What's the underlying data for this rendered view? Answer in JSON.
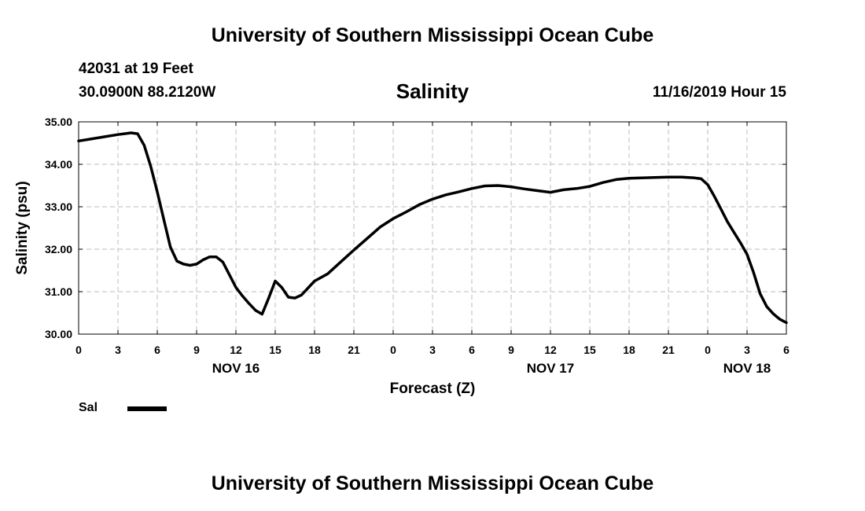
{
  "header": {
    "title": "University of Southern Mississippi Ocean Cube",
    "station": "42031 at 19 Feet",
    "coords": "30.0900N 88.2120W",
    "timestamp": "11/16/2019 Hour 15"
  },
  "footer": {
    "title": "University of Southern Mississippi Ocean Cube"
  },
  "legend": {
    "label": "Sal"
  },
  "colors": {
    "line": "#000000",
    "grid": "#bdbdbd",
    "background": "#ffffff"
  },
  "chart_data": {
    "type": "line",
    "title": "Salinity",
    "xlabel": "Forecast (Z)",
    "ylabel": "Salinity (psu)",
    "xlim": [
      0,
      54
    ],
    "ylim": [
      30,
      35
    ],
    "grid": true,
    "yticks": [
      {
        "value": 30,
        "label": "30.00"
      },
      {
        "value": 31,
        "label": "31.00"
      },
      {
        "value": 32,
        "label": "32.00"
      },
      {
        "value": 33,
        "label": "33.00"
      },
      {
        "value": 34,
        "label": "34.00"
      },
      {
        "value": 35,
        "label": "35.00"
      }
    ],
    "xticks": [
      {
        "value": 0,
        "label": "0"
      },
      {
        "value": 3,
        "label": "3"
      },
      {
        "value": 6,
        "label": "6"
      },
      {
        "value": 9,
        "label": "9"
      },
      {
        "value": 12,
        "label": "12"
      },
      {
        "value": 15,
        "label": "15"
      },
      {
        "value": 18,
        "label": "18"
      },
      {
        "value": 21,
        "label": "21"
      },
      {
        "value": 24,
        "label": "0"
      },
      {
        "value": 27,
        "label": "3"
      },
      {
        "value": 30,
        "label": "6"
      },
      {
        "value": 33,
        "label": "9"
      },
      {
        "value": 36,
        "label": "12"
      },
      {
        "value": 39,
        "label": "15"
      },
      {
        "value": 42,
        "label": "18"
      },
      {
        "value": 45,
        "label": "21"
      },
      {
        "value": 48,
        "label": "0"
      },
      {
        "value": 51,
        "label": "3"
      },
      {
        "value": 54,
        "label": "6"
      }
    ],
    "day_labels": [
      {
        "value": 12,
        "label": "NOV 16"
      },
      {
        "value": 36,
        "label": "NOV 17"
      },
      {
        "value": 51,
        "label": "NOV 18"
      }
    ],
    "series": [
      {
        "name": "Sal",
        "x": [
          0,
          1,
          2,
          3,
          4,
          4.5,
          5,
          5.5,
          6,
          6.5,
          7,
          7.5,
          8,
          8.5,
          9,
          9.5,
          10,
          10.5,
          11,
          11.5,
          12,
          12.5,
          13,
          13.5,
          14,
          14.5,
          15,
          15.5,
          16,
          16.5,
          17,
          18,
          19,
          20,
          21,
          22,
          23,
          24,
          25,
          26,
          27,
          28,
          29,
          30,
          31,
          32,
          33,
          34,
          35,
          36,
          37,
          38,
          39,
          40,
          41,
          42,
          43,
          44,
          45,
          46,
          47,
          47.5,
          48,
          48.5,
          49,
          49.5,
          50,
          50.5,
          51,
          51.5,
          52,
          52.5,
          53,
          53.5,
          54
        ],
        "values": [
          34.55,
          34.6,
          34.65,
          34.7,
          34.74,
          34.72,
          34.45,
          33.95,
          33.35,
          32.7,
          32.05,
          31.72,
          31.65,
          31.62,
          31.65,
          31.75,
          31.82,
          31.82,
          31.7,
          31.4,
          31.1,
          30.9,
          30.72,
          30.56,
          30.47,
          30.85,
          31.25,
          31.1,
          30.87,
          30.85,
          30.92,
          31.25,
          31.42,
          31.7,
          31.98,
          32.25,
          32.52,
          32.72,
          32.88,
          33.05,
          33.18,
          33.28,
          33.35,
          33.43,
          33.49,
          33.5,
          33.47,
          33.42,
          33.38,
          33.34,
          33.4,
          33.43,
          33.48,
          33.57,
          33.64,
          33.67,
          33.68,
          33.69,
          33.7,
          33.7,
          33.68,
          33.66,
          33.52,
          33.25,
          32.95,
          32.65,
          32.4,
          32.15,
          31.88,
          31.45,
          30.95,
          30.65,
          30.48,
          30.35,
          30.27
        ]
      }
    ]
  }
}
